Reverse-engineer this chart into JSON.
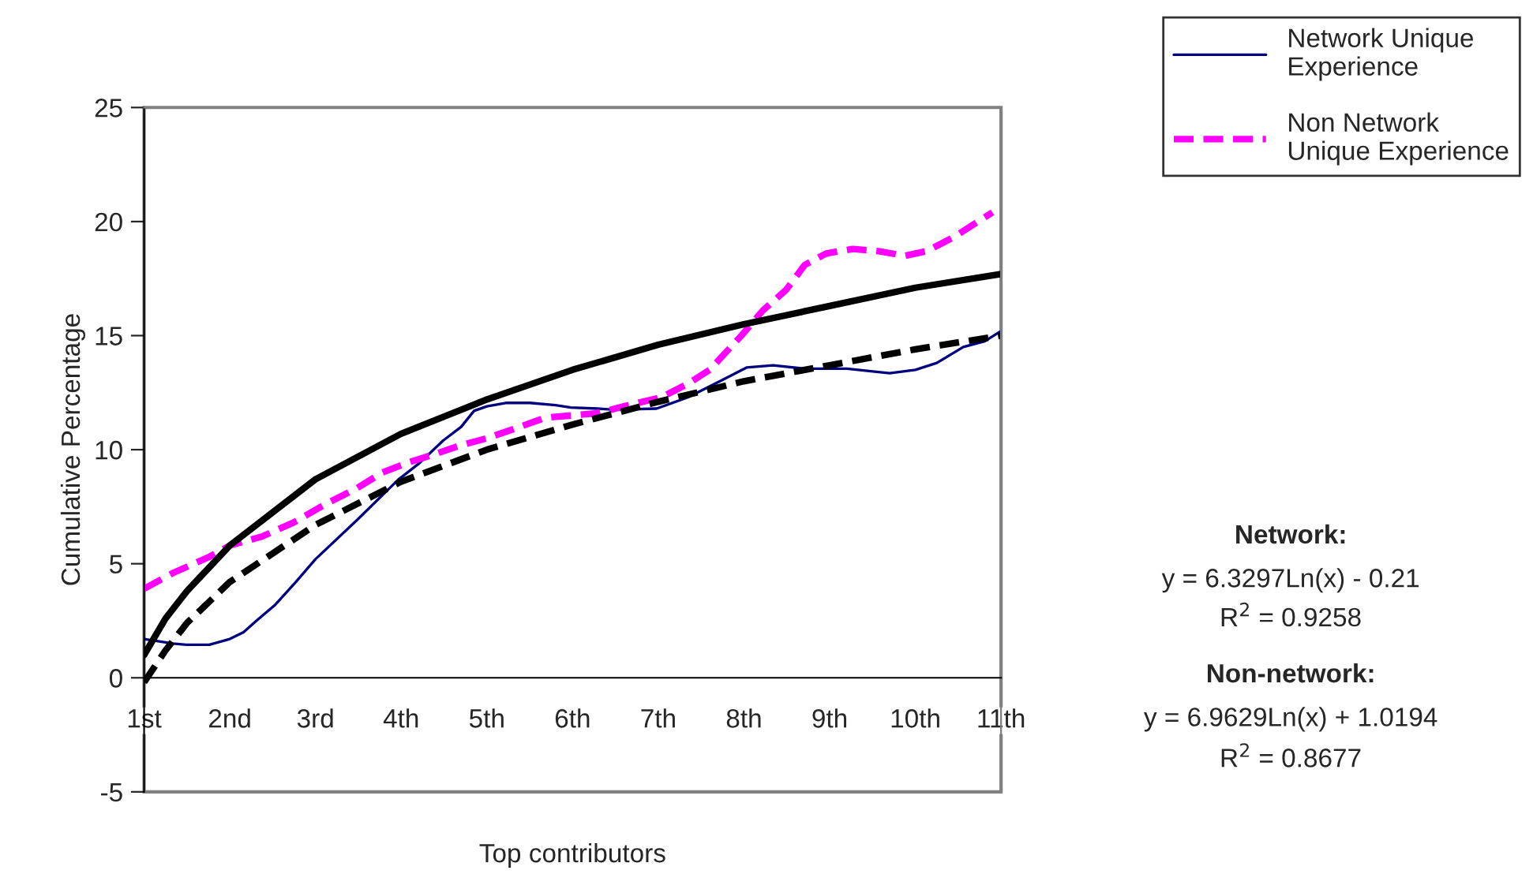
{
  "chart_data": {
    "type": "line",
    "xlabel": "Top contributors",
    "ylabel": "Cumulative Percentage",
    "xlim": [
      1,
      11
    ],
    "ylim": [
      -5,
      25
    ],
    "yticks": [
      -5,
      0,
      5,
      10,
      15,
      20,
      25
    ],
    "xticks": [
      {
        "value": 1,
        "label": "1st"
      },
      {
        "value": 2,
        "label": "2nd"
      },
      {
        "value": 3,
        "label": "3rd"
      },
      {
        "value": 4,
        "label": "4th"
      },
      {
        "value": 5,
        "label": "5th"
      },
      {
        "value": 6,
        "label": "6th"
      },
      {
        "value": 7,
        "label": "7th"
      },
      {
        "value": 8,
        "label": "8th"
      },
      {
        "value": 9,
        "label": "9th"
      },
      {
        "value": 10,
        "label": "10th"
      },
      {
        "value": 11,
        "label": "11th"
      }
    ],
    "grid": false,
    "legend": "top right",
    "marker": "none",
    "series": [
      {
        "name": "Network Unique Experience",
        "color": "#000080",
        "line_style": "solid",
        "x": [
          1,
          1.34,
          1.49,
          1.76,
          2.0,
          2.16,
          2.31,
          2.53,
          2.77,
          3.0,
          3.48,
          3.97,
          4.21,
          4.49,
          4.7,
          4.85,
          5.0,
          5.22,
          5.5,
          5.8,
          5.98,
          6.29,
          6.49,
          6.98,
          7.35,
          7.72,
          8.03,
          8.34,
          8.71,
          9.2,
          9.7,
          10.0,
          10.25,
          10.56,
          10.81,
          11
        ],
        "values": [
          1.7,
          1.5,
          1.45,
          1.45,
          1.7,
          2.0,
          2.5,
          3.2,
          4.2,
          5.2,
          6.9,
          8.7,
          9.4,
          10.4,
          11.0,
          11.7,
          11.9,
          12.05,
          12.05,
          11.95,
          11.85,
          11.8,
          11.75,
          11.8,
          12.3,
          13.0,
          13.6,
          13.7,
          13.55,
          13.55,
          13.35,
          13.5,
          13.8,
          14.5,
          14.75,
          15.2
        ]
      },
      {
        "name": "Non Network Unique Experience",
        "color": "#ff00ff",
        "line_style": "dashed",
        "x": [
          1,
          1.34,
          1.76,
          2.0,
          2.38,
          2.74,
          3.11,
          3.48,
          3.78,
          4.09,
          4.39,
          4.7,
          5.0,
          5.31,
          5.68,
          6.29,
          6.6,
          7.04,
          7.35,
          7.6,
          7.97,
          8.22,
          8.49,
          8.71,
          8.96,
          9.27,
          9.57,
          9.88,
          10.13,
          10.44,
          10.9
        ],
        "values": [
          3.9,
          4.6,
          5.3,
          5.8,
          6.2,
          6.8,
          7.6,
          8.3,
          9.0,
          9.45,
          9.8,
          10.2,
          10.5,
          10.9,
          11.4,
          11.6,
          11.9,
          12.3,
          12.9,
          13.5,
          15.0,
          16.1,
          17.0,
          18.1,
          18.6,
          18.8,
          18.7,
          18.5,
          18.7,
          19.3,
          20.4
        ]
      },
      {
        "type": "line",
        "color": "#000000",
        "line_style": "solid",
        "x": [
          1,
          1.25,
          1.5,
          2,
          3,
          4,
          5,
          6,
          7,
          8,
          9,
          10,
          11
        ],
        "values": [
          1.0,
          2.6,
          3.8,
          5.8,
          8.7,
          10.7,
          12.2,
          13.5,
          14.6,
          15.5,
          16.3,
          17.1,
          17.7
        ]
      },
      {
        "type": "line",
        "color": "#000000",
        "line_style": "dashed",
        "x": [
          1,
          1.25,
          1.5,
          2,
          3,
          4,
          5,
          6,
          7,
          8,
          9,
          10,
          11
        ],
        "values": [
          -0.2,
          1.2,
          2.4,
          4.2,
          6.7,
          8.6,
          10.0,
          11.1,
          12.1,
          13.0,
          13.7,
          14.4,
          15.0
        ]
      }
    ],
    "annotations": [
      "Network:",
      "y = 6.3297Ln(x) - 0.21",
      "R$^{2}$ = 0.9258",
      "Non-network:",
      "y = 6.9629Ln(x) + 1.0194",
      "R$^{2}$ = 0.8677"
    ]
  }
}
